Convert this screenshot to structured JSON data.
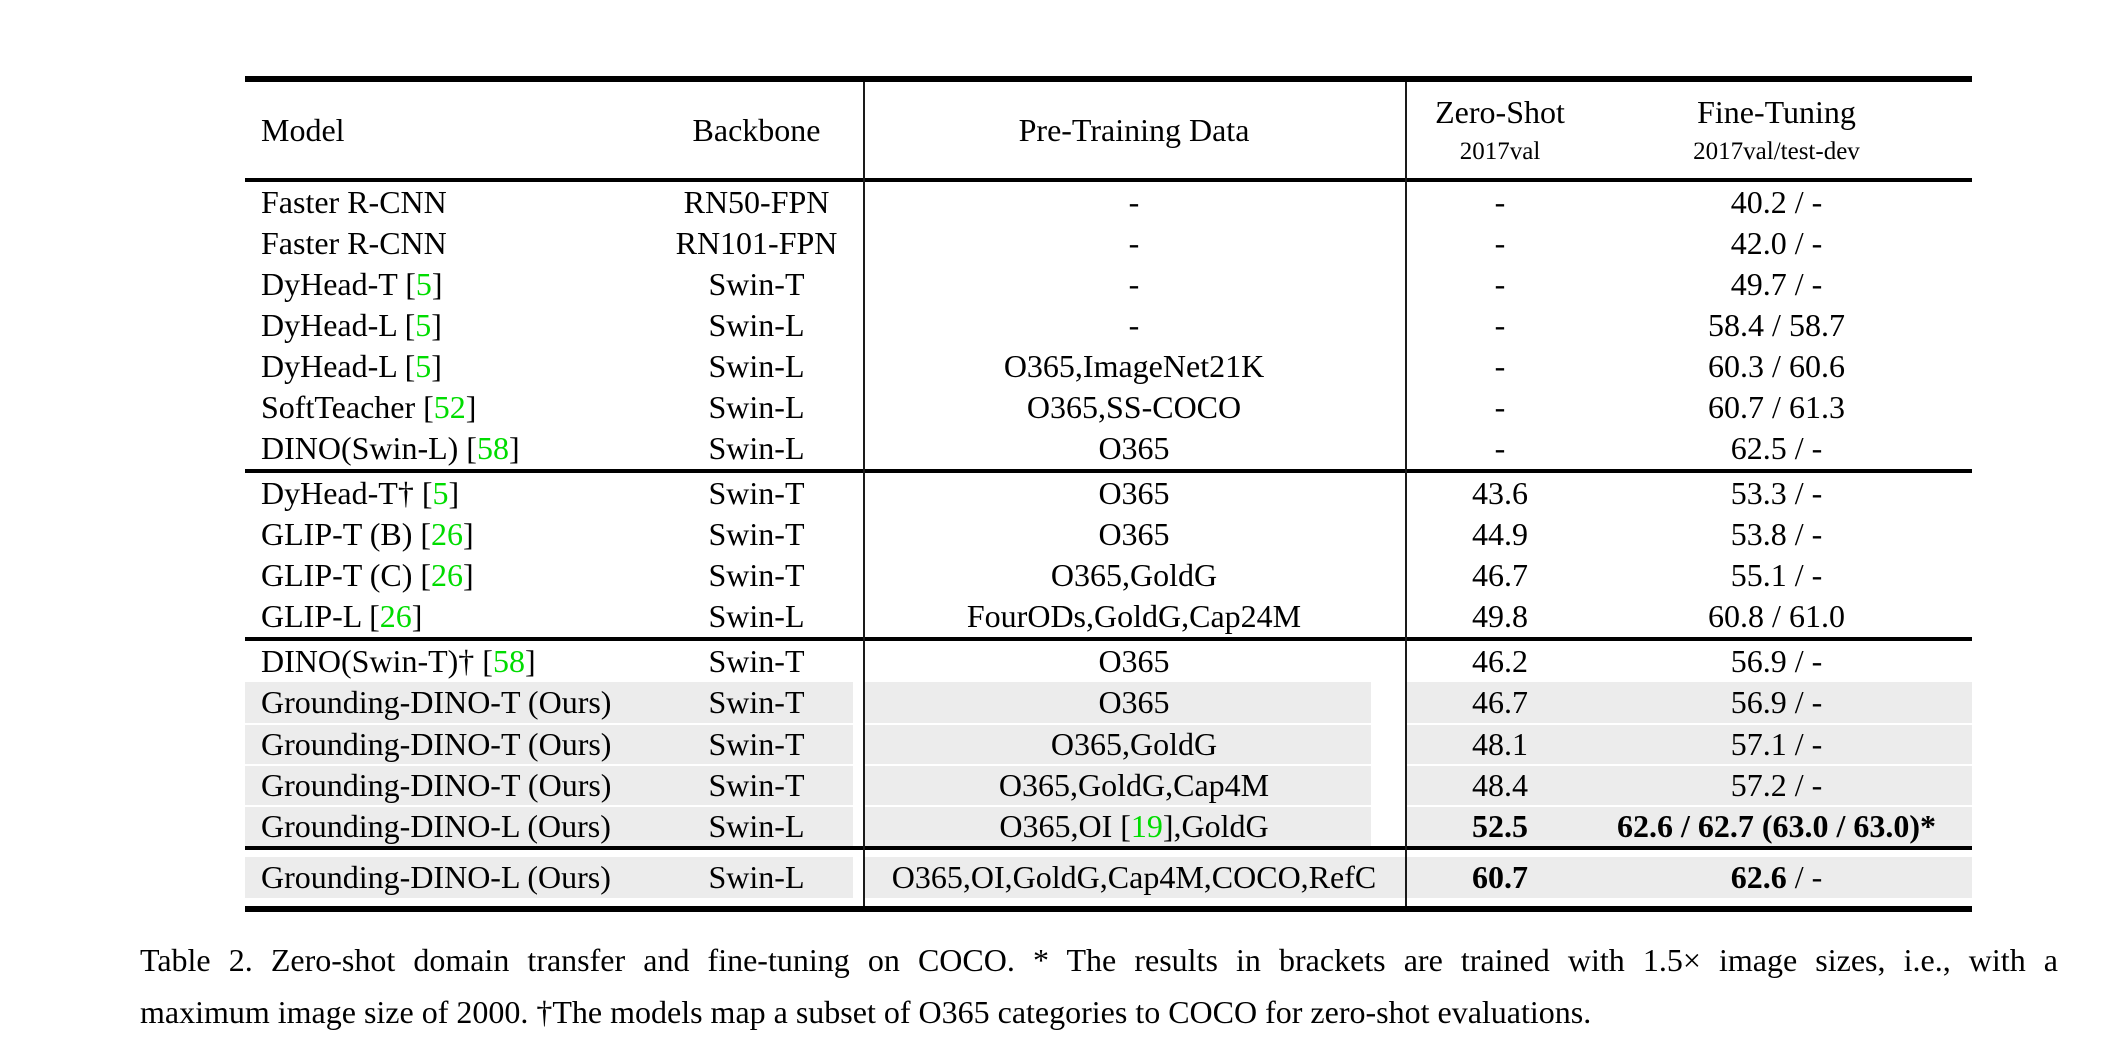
{
  "colors": {
    "citation_green": "#00DC00",
    "row_highlight": "#ECECEC",
    "rule_black": "#000000"
  },
  "table": {
    "header": {
      "model": "Model",
      "backbone": "Backbone",
      "pretraining": "Pre-Training Data",
      "zero_shot_title": "Zero-Shot",
      "zero_shot_sub": "2017val",
      "fine_tuning_title": "Fine-Tuning",
      "fine_tuning_sub": "2017val/test-dev"
    },
    "sections": [
      {
        "rows": [
          {
            "model": "Faster R-CNN",
            "backbone": "RN50-FPN",
            "pretrain": "-",
            "zs": "-",
            "ft": "40.2 / -"
          },
          {
            "model": "Faster R-CNN",
            "backbone": "RN101-FPN",
            "pretrain": "-",
            "zs": "-",
            "ft": "42.0 / -"
          },
          {
            "model": "DyHead-T [5]",
            "backbone": "Swin-T",
            "pretrain": "-",
            "zs": "-",
            "ft": "49.7 / -"
          },
          {
            "model": "DyHead-L [5]",
            "backbone": "Swin-L",
            "pretrain": "-",
            "zs": "-",
            "ft": "58.4 / 58.7"
          },
          {
            "model": "DyHead-L [5]",
            "backbone": "Swin-L",
            "pretrain": "O365,ImageNet21K",
            "zs": "-",
            "ft": "60.3 / 60.6"
          },
          {
            "model": "SoftTeacher [52]",
            "backbone": "Swin-L",
            "pretrain": "O365,SS-COCO",
            "zs": "-",
            "ft": "60.7 / 61.3"
          },
          {
            "model": "DINO(Swin-L) [58]",
            "backbone": "Swin-L",
            "pretrain": "O365",
            "zs": "-",
            "ft": "62.5 / -"
          }
        ]
      },
      {
        "rows": [
          {
            "model": "DyHead-T† [5]",
            "backbone": "Swin-T",
            "pretrain": "O365",
            "zs": "43.6",
            "ft": "53.3 / -"
          },
          {
            "model": "GLIP-T (B) [26]",
            "backbone": "Swin-T",
            "pretrain": "O365",
            "zs": "44.9",
            "ft": "53.8 / -"
          },
          {
            "model": "GLIP-T (C) [26]",
            "backbone": "Swin-T",
            "pretrain": "O365,GoldG",
            "zs": "46.7",
            "ft": "55.1 / -"
          },
          {
            "model": "GLIP-L [26]",
            "backbone": "Swin-L",
            "pretrain": "FourODs,GoldG,Cap24M",
            "zs": "49.8",
            "ft": "60.8 / 61.0"
          }
        ]
      },
      {
        "rows": [
          {
            "model": "DINO(Swin-T)† [58]",
            "backbone": "Swin-T",
            "pretrain": "O365",
            "zs": "46.2",
            "ft": "56.9 / -"
          },
          {
            "model": "Grounding-DINO-T (Ours)",
            "backbone": "Swin-T",
            "pretrain": "O365",
            "zs": "46.7",
            "ft": "56.9 / -",
            "hl": true,
            "pt_gap": true
          },
          {
            "model": "Grounding-DINO-T (Ours)",
            "backbone": "Swin-T",
            "pretrain": "O365,GoldG",
            "zs": "48.1",
            "ft": "57.1 / -",
            "hl": true,
            "pt_gap": true
          },
          {
            "model": "Grounding-DINO-T (Ours)",
            "backbone": "Swin-T",
            "pretrain": "O365,GoldG,Cap4M",
            "zs": "48.4",
            "ft": "57.2 / -",
            "hl": true,
            "pt_gap": true
          },
          {
            "model": "Grounding-DINO-L (Ours)",
            "backbone": "Swin-L",
            "pretrain": "O365,OI [19],GoldG",
            "zs": "52.5",
            "zs_bold": true,
            "ft": "62.6 / 62.7 (63.0 / 63.0)*",
            "ft_bold": true,
            "hl": true,
            "pt_gap": true
          }
        ]
      },
      {
        "rows": [
          {
            "model": "Grounding-DINO-L (Ours)",
            "backbone": "Swin-L",
            "pretrain": "O365,OI,GoldG,Cap4M,COCO,RefC",
            "zs": "60.7",
            "zs_bold": true,
            "ft": "62.6 / -",
            "ft_bold_prefix": "62.6",
            "hl": true
          }
        ]
      }
    ]
  },
  "caption": {
    "line1": "Table 2.  Zero-shot domain transfer and fine-tuning on COCO. * The results in brackets are trained with 1.5× image sizes, i.e., with a",
    "line2": "maximum image size of 2000. †The models map a subset of O365 categories to COCO for zero-shot evaluations."
  }
}
